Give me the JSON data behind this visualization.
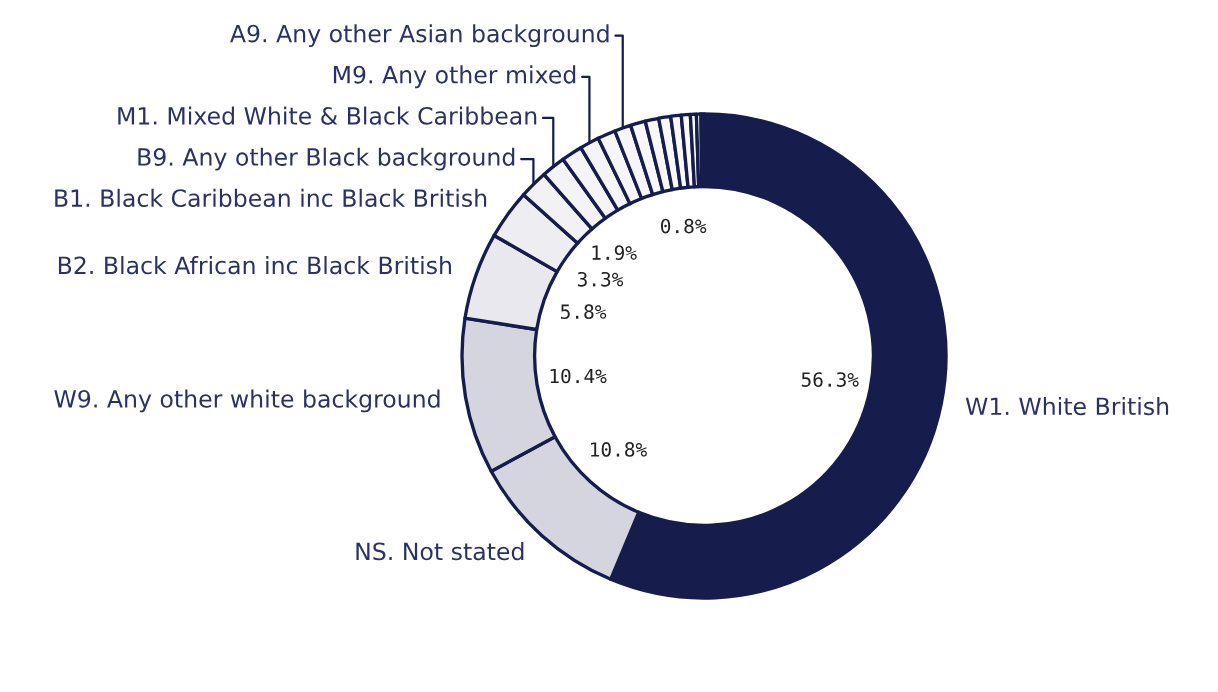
{
  "chart_data": {
    "type": "donut",
    "categories": [
      "W1. White British",
      "NS. Not stated",
      "W9. Any other white background",
      "B2. Black African inc Black British",
      "B1. Black Caribbean inc Black British",
      "B9. Any other Black background",
      "M1. Mixed White & Black Caribbean",
      null,
      "M9. Any other mixed",
      null,
      "A9. Any other Asian background",
      null,
      null,
      null,
      null,
      null,
      null,
      null,
      null
    ],
    "values": [
      56.3,
      10.8,
      10.4,
      5.8,
      3.3,
      1.9,
      1.6,
      1.4,
      1.3,
      1.2,
      1.1,
      1.0,
      0.9,
      0.8,
      0.7,
      0.6,
      0.4,
      0.3,
      0.2
    ],
    "value_labels": [
      "56.3%",
      "10.8%",
      "10.4%",
      "5.8%",
      "3.3%",
      "1.9%",
      null,
      null,
      null,
      null,
      null,
      null,
      null,
      "0.8%",
      null,
      null,
      null,
      null,
      null
    ],
    "colors": [
      "#161c4c",
      "#d4d5df",
      "#d4d5df",
      "#e8e8ee",
      "#eeeef2",
      "#f2f2f5",
      "#f4f4f7",
      "#f5f5f8",
      "#f5f5f8",
      "#f6f6f9",
      "#f6f6f9",
      "#f7f7f9",
      "#f7f7f9",
      "#f8f8fa",
      "#f8f8fa",
      "#f9f9fb",
      "#f9f9fb",
      "#fafafc",
      "#fafafc"
    ]
  }
}
